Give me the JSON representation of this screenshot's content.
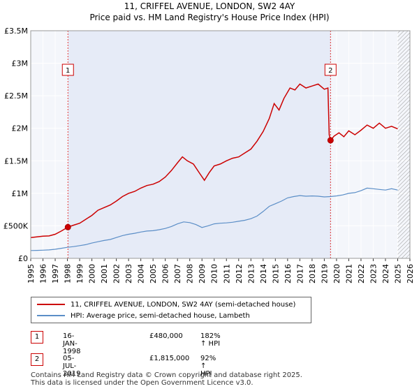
{
  "chart_data": {
    "type": "line",
    "title": "11, CRIFFEL AVENUE, LONDON, SW2 4AY",
    "subtitle": "Price paid vs. HM Land Registry's House Price Index (HPI)",
    "xlim": [
      1995,
      2026
    ],
    "ylim": [
      0,
      3500000
    ],
    "y_ticks": [
      {
        "value": 0,
        "label": "£0"
      },
      {
        "value": 500000,
        "label": "£500K"
      },
      {
        "value": 1000000,
        "label": "£1M"
      },
      {
        "value": 1500000,
        "label": "£1.5M"
      },
      {
        "value": 2000000,
        "label": "£2M"
      },
      {
        "value": 2500000,
        "label": "£2.5M"
      },
      {
        "value": 3000000,
        "label": "£3M"
      },
      {
        "value": 3500000,
        "label": "£3.5M"
      }
    ],
    "x_ticks": [
      "1995",
      "1996",
      "1997",
      "1998",
      "1999",
      "2000",
      "2001",
      "2002",
      "2003",
      "2004",
      "2005",
      "2006",
      "2007",
      "2008",
      "2009",
      "2010",
      "2011",
      "2012",
      "2013",
      "2014",
      "2015",
      "2016",
      "2017",
      "2018",
      "2019",
      "2020",
      "2021",
      "2022",
      "2023",
      "2024",
      "2025",
      "2026"
    ],
    "series": [
      {
        "name": "11, CRIFFEL AVENUE, LONDON, SW2 4AY (semi-detached house)",
        "color": "#cc0000",
        "points": [
          [
            1995.0,
            320000
          ],
          [
            1995.5,
            330000
          ],
          [
            1996.0,
            340000
          ],
          [
            1996.5,
            345000
          ],
          [
            1997.0,
            370000
          ],
          [
            1997.5,
            420000
          ],
          [
            1998.04,
            480000
          ],
          [
            1998.5,
            510000
          ],
          [
            1999.0,
            540000
          ],
          [
            1999.5,
            600000
          ],
          [
            2000.0,
            660000
          ],
          [
            2000.5,
            740000
          ],
          [
            2001.0,
            780000
          ],
          [
            2001.5,
            820000
          ],
          [
            2002.0,
            880000
          ],
          [
            2002.5,
            950000
          ],
          [
            2003.0,
            1000000
          ],
          [
            2003.5,
            1030000
          ],
          [
            2004.0,
            1080000
          ],
          [
            2004.5,
            1120000
          ],
          [
            2005.0,
            1140000
          ],
          [
            2005.5,
            1180000
          ],
          [
            2006.0,
            1250000
          ],
          [
            2006.5,
            1350000
          ],
          [
            2007.0,
            1470000
          ],
          [
            2007.4,
            1560000
          ],
          [
            2007.8,
            1500000
          ],
          [
            2008.3,
            1450000
          ],
          [
            2008.8,
            1310000
          ],
          [
            2009.2,
            1200000
          ],
          [
            2009.6,
            1320000
          ],
          [
            2010.0,
            1420000
          ],
          [
            2010.5,
            1450000
          ],
          [
            2011.0,
            1500000
          ],
          [
            2011.5,
            1540000
          ],
          [
            2012.0,
            1560000
          ],
          [
            2012.5,
            1620000
          ],
          [
            2013.0,
            1680000
          ],
          [
            2013.5,
            1800000
          ],
          [
            2014.0,
            1950000
          ],
          [
            2014.5,
            2150000
          ],
          [
            2014.9,
            2380000
          ],
          [
            2015.3,
            2280000
          ],
          [
            2015.7,
            2460000
          ],
          [
            2016.2,
            2620000
          ],
          [
            2016.6,
            2590000
          ],
          [
            2017.0,
            2680000
          ],
          [
            2017.5,
            2620000
          ],
          [
            2018.0,
            2650000
          ],
          [
            2018.5,
            2680000
          ],
          [
            2019.0,
            2600000
          ],
          [
            2019.3,
            2620000
          ],
          [
            2019.4,
            1900000
          ],
          [
            2019.51,
            1815000
          ],
          [
            2019.8,
            1880000
          ],
          [
            2020.2,
            1930000
          ],
          [
            2020.6,
            1870000
          ],
          [
            2021.0,
            1960000
          ],
          [
            2021.5,
            1900000
          ],
          [
            2022.0,
            1970000
          ],
          [
            2022.5,
            2050000
          ],
          [
            2023.0,
            2000000
          ],
          [
            2023.5,
            2080000
          ],
          [
            2024.0,
            2000000
          ],
          [
            2024.5,
            2030000
          ],
          [
            2025.0,
            1990000
          ]
        ]
      },
      {
        "name": "HPI: Average price, semi-detached house, Lambeth",
        "color": "#5b8ec7",
        "points": [
          [
            1995.0,
            120000
          ],
          [
            1995.5,
            122000
          ],
          [
            1996.0,
            126000
          ],
          [
            1996.5,
            130000
          ],
          [
            1997.0,
            140000
          ],
          [
            1997.5,
            155000
          ],
          [
            1998.0,
            170000
          ],
          [
            1998.5,
            180000
          ],
          [
            1999.0,
            195000
          ],
          [
            1999.5,
            210000
          ],
          [
            2000.0,
            235000
          ],
          [
            2000.5,
            255000
          ],
          [
            2001.0,
            275000
          ],
          [
            2001.5,
            290000
          ],
          [
            2002.0,
            320000
          ],
          [
            2002.5,
            350000
          ],
          [
            2003.0,
            370000
          ],
          [
            2003.5,
            385000
          ],
          [
            2004.0,
            405000
          ],
          [
            2004.5,
            420000
          ],
          [
            2005.0,
            425000
          ],
          [
            2005.5,
            440000
          ],
          [
            2006.0,
            460000
          ],
          [
            2006.5,
            490000
          ],
          [
            2007.0,
            530000
          ],
          [
            2007.5,
            560000
          ],
          [
            2008.0,
            550000
          ],
          [
            2008.5,
            520000
          ],
          [
            2009.0,
            475000
          ],
          [
            2009.5,
            500000
          ],
          [
            2010.0,
            530000
          ],
          [
            2010.5,
            540000
          ],
          [
            2011.0,
            545000
          ],
          [
            2011.5,
            555000
          ],
          [
            2012.0,
            570000
          ],
          [
            2012.5,
            585000
          ],
          [
            2013.0,
            610000
          ],
          [
            2013.5,
            650000
          ],
          [
            2014.0,
            720000
          ],
          [
            2014.5,
            800000
          ],
          [
            2015.0,
            840000
          ],
          [
            2015.5,
            880000
          ],
          [
            2016.0,
            930000
          ],
          [
            2016.5,
            950000
          ],
          [
            2017.0,
            965000
          ],
          [
            2017.5,
            955000
          ],
          [
            2018.0,
            960000
          ],
          [
            2018.5,
            955000
          ],
          [
            2019.0,
            945000
          ],
          [
            2019.5,
            950000
          ],
          [
            2020.0,
            960000
          ],
          [
            2020.5,
            975000
          ],
          [
            2021.0,
            1000000
          ],
          [
            2021.5,
            1010000
          ],
          [
            2022.0,
            1040000
          ],
          [
            2022.5,
            1080000
          ],
          [
            2023.0,
            1070000
          ],
          [
            2023.5,
            1060000
          ],
          [
            2024.0,
            1050000
          ],
          [
            2024.5,
            1070000
          ],
          [
            2025.0,
            1050000
          ]
        ]
      }
    ],
    "markers": [
      {
        "label": "1",
        "x": 1998.04,
        "y": 480000
      },
      {
        "label": "2",
        "x": 2019.51,
        "y": 1815000
      }
    ],
    "shaded_ranges": [
      {
        "from": 1998.04,
        "to": 2019.51,
        "kind": "ownership"
      },
      {
        "from": 2025.0,
        "to": 2026.0,
        "kind": "hatched"
      }
    ]
  },
  "legend": {
    "items": [
      {
        "label": "11, CRIFFEL AVENUE, LONDON, SW2 4AY (semi-detached house)",
        "color": "#cc0000"
      },
      {
        "label": "HPI: Average price, semi-detached house, Lambeth",
        "color": "#5b8ec7"
      }
    ]
  },
  "transactions": [
    {
      "id": "1",
      "date": "16-JAN-1998",
      "price": "£480,000",
      "hpi": "182% ↑ HPI"
    },
    {
      "id": "2",
      "date": "05-JUL-2019",
      "price": "£1,815,000",
      "hpi": "92% ↑ HPI"
    }
  ],
  "footer": {
    "line1": "Contains HM Land Registry data © Crown copyright and database right 2025.",
    "line2": "This data is licensed under the Open Government Licence v3.0."
  }
}
